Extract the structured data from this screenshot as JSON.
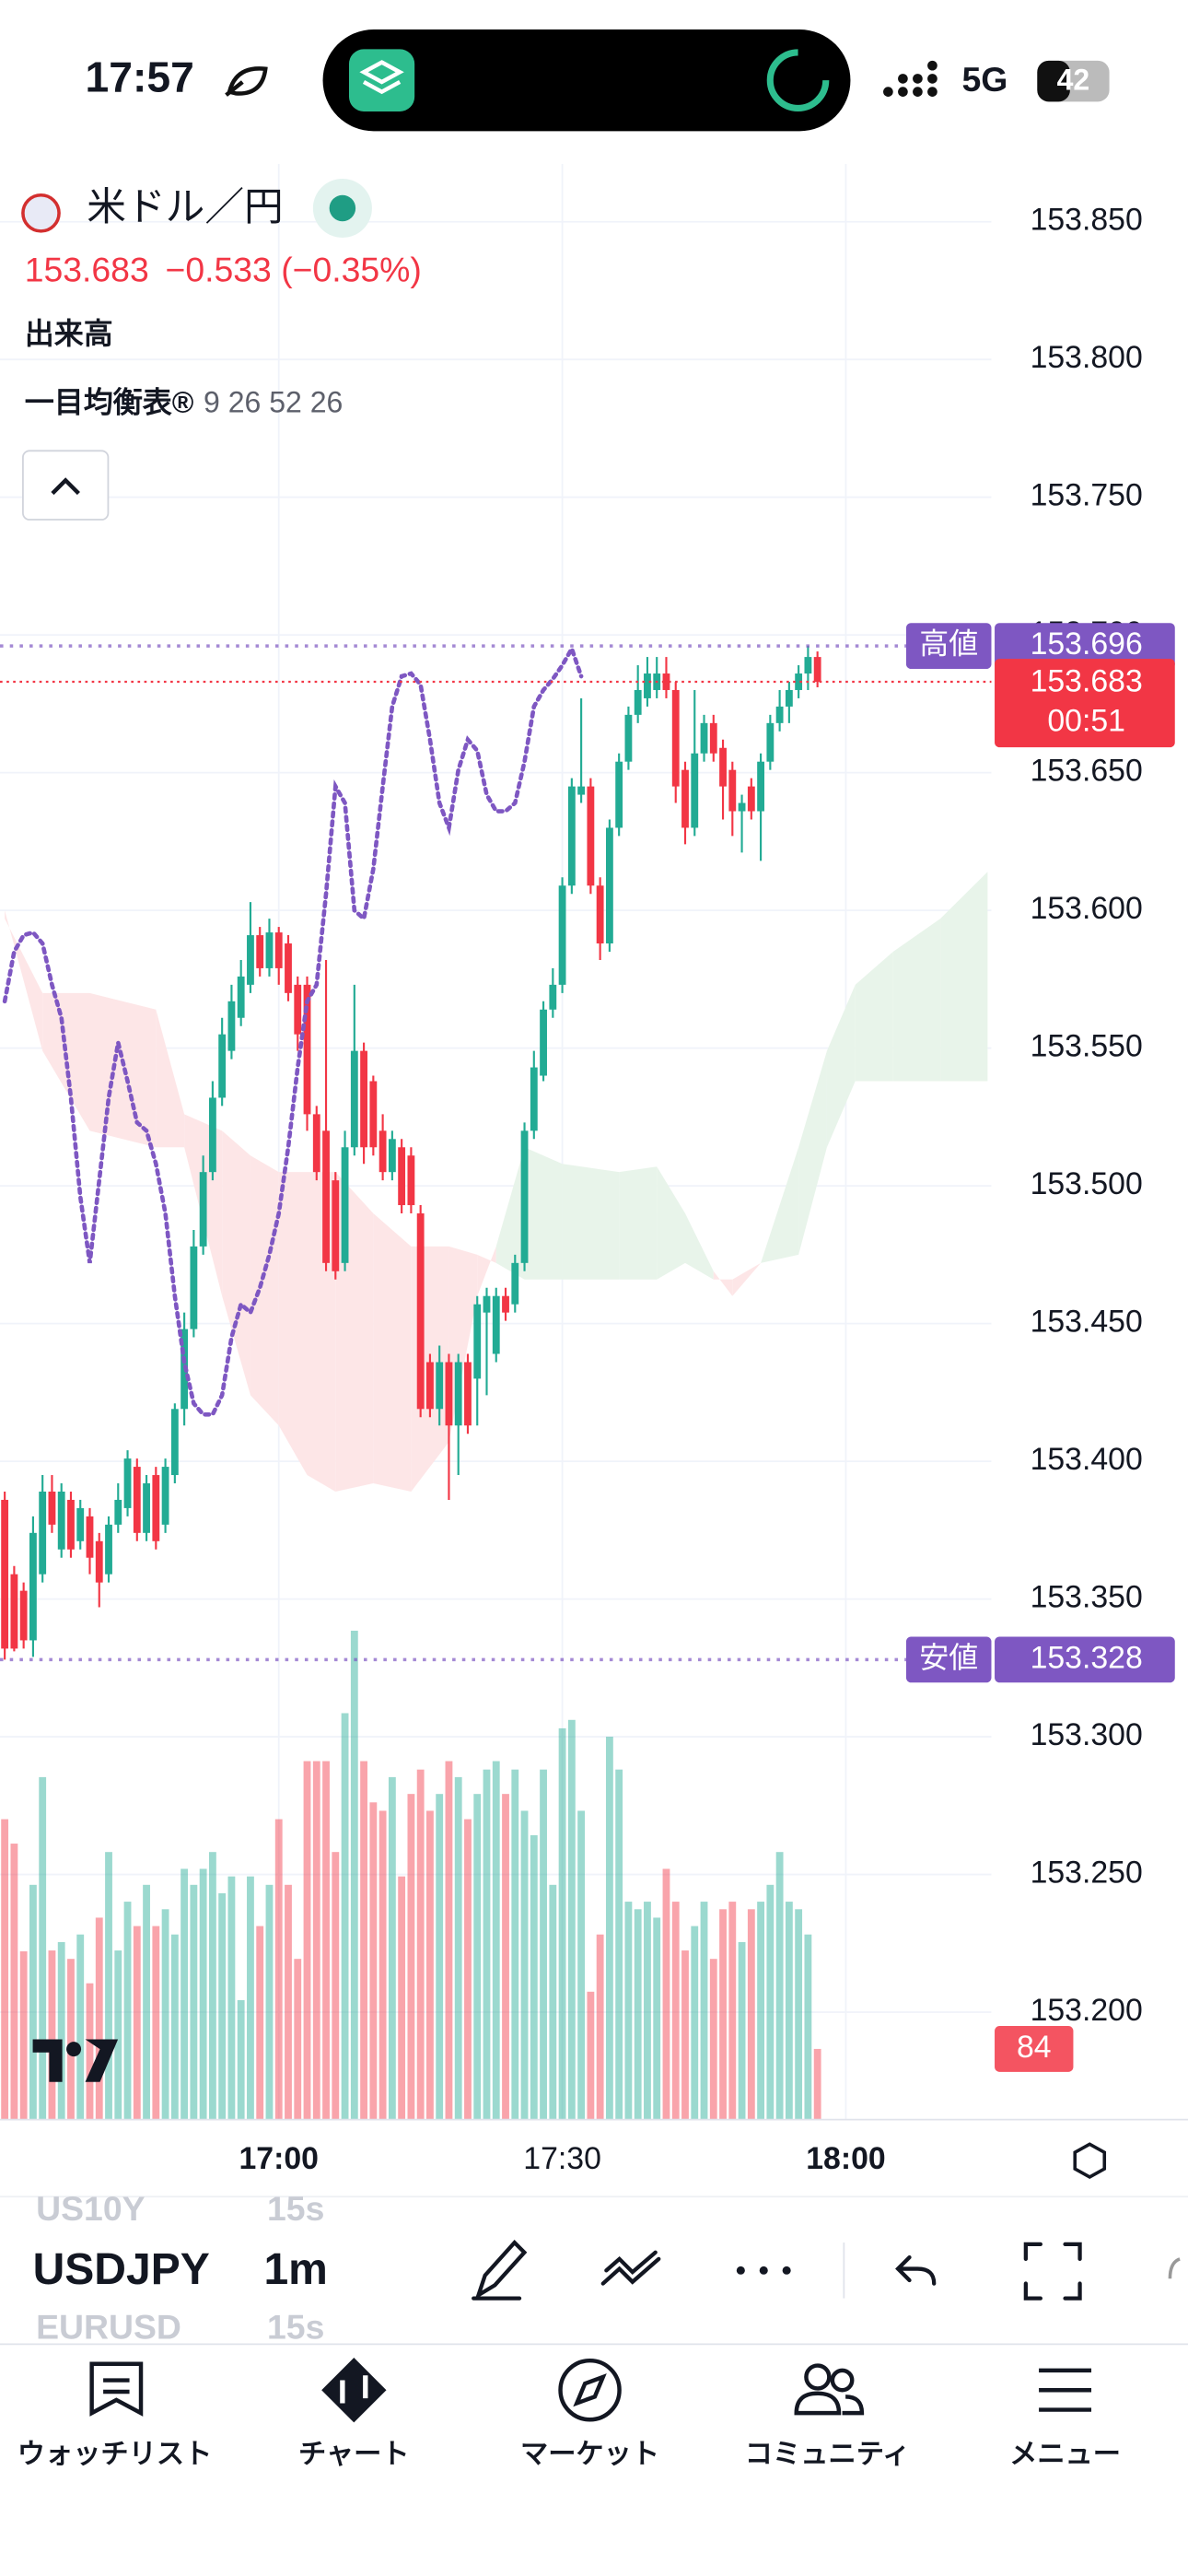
{
  "status_bar": {
    "time": "17:57",
    "network": "5G",
    "battery": "42"
  },
  "header": {
    "symbol": "米ドル／円",
    "price": "153.683",
    "change": "−0.533 (−0.35%)",
    "volume_label": "出来高",
    "indicator_label": "一目均衡表®",
    "indicator_params": "9 26 52 26"
  },
  "chart_data": {
    "type": "candlestick",
    "up_color": "#22ab94",
    "down_color": "#f23645",
    "x": [
      -29,
      -28,
      -27,
      -26,
      -25,
      -24,
      -23,
      -22,
      -21,
      -20,
      -19,
      -18,
      -17,
      -16,
      -15,
      -14,
      -13,
      -12,
      -11,
      -10,
      -9,
      -8,
      -7,
      -6,
      -5,
      -4,
      -3,
      -2,
      -1,
      0,
      1,
      2,
      3,
      4,
      5,
      6,
      7,
      8,
      9,
      10,
      11,
      12,
      13,
      14,
      15,
      16,
      17,
      18,
      19,
      20,
      21,
      22,
      23,
      24,
      25,
      26,
      27,
      28,
      29,
      30,
      31,
      32,
      33,
      34,
      35,
      36,
      37,
      38,
      39,
      40,
      41,
      42,
      43,
      44,
      45,
      46,
      47,
      48,
      49,
      50,
      51,
      52,
      53,
      54,
      55,
      56,
      57
    ],
    "open": [
      153.386,
      153.359,
      153.353,
      153.335,
      153.359,
      153.389,
      153.368,
      153.386,
      153.371,
      153.38,
      153.371,
      153.359,
      153.377,
      153.383,
      153.398,
      153.374,
      153.395,
      153.377,
      153.395,
      153.419,
      153.448,
      153.478,
      153.505,
      153.532,
      153.549,
      153.561,
      153.573,
      153.591,
      153.579,
      153.592,
      153.588,
      153.573,
      153.573,
      153.526,
      153.52,
      153.502,
      153.472,
      153.514,
      153.549,
      153.538,
      153.52,
      153.505,
      153.514,
      153.511,
      153.49,
      153.436,
      153.419,
      153.436,
      153.413,
      153.436,
      153.43,
      153.454,
      153.439,
      153.46,
      153.457,
      153.472,
      153.52,
      153.54,
      153.564,
      153.573,
      153.609,
      153.642,
      153.645,
      153.609,
      153.588,
      153.63,
      153.654,
      153.671,
      153.677,
      153.68,
      153.686,
      153.68,
      153.651,
      153.63,
      153.657,
      153.668,
      153.659,
      153.651,
      153.636,
      153.645,
      153.636,
      153.654,
      153.668,
      153.674,
      153.68,
      153.686,
      153.692
    ],
    "high": [
      153.389,
      153.362,
      153.356,
      153.38,
      153.395,
      153.395,
      153.392,
      153.389,
      153.386,
      153.383,
      153.374,
      153.38,
      153.392,
      153.404,
      153.401,
      153.395,
      153.398,
      153.401,
      153.421,
      153.454,
      153.484,
      153.511,
      153.538,
      153.561,
      153.573,
      153.582,
      153.603,
      153.594,
      153.597,
      153.594,
      153.591,
      153.576,
      153.576,
      153.529,
      153.582,
      153.505,
      153.52,
      153.573,
      153.552,
      153.54,
      153.526,
      153.52,
      153.517,
      153.514,
      153.493,
      153.439,
      153.442,
      153.439,
      153.439,
      153.439,
      153.46,
      153.463,
      153.463,
      153.463,
      153.475,
      153.523,
      153.549,
      153.567,
      153.579,
      153.612,
      153.648,
      153.677,
      153.648,
      153.612,
      153.633,
      153.657,
      153.674,
      153.689,
      153.692,
      153.692,
      153.692,
      153.683,
      153.654,
      153.68,
      153.671,
      153.671,
      153.662,
      153.654,
      153.642,
      153.648,
      153.657,
      153.671,
      153.68,
      153.683,
      153.689,
      153.696,
      153.694
    ],
    "low": [
      153.328,
      153.331,
      153.332,
      153.329,
      153.356,
      153.374,
      153.365,
      153.365,
      153.368,
      153.359,
      153.347,
      153.356,
      153.374,
      153.38,
      153.371,
      153.371,
      153.368,
      153.374,
      153.392,
      153.413,
      153.445,
      153.475,
      153.502,
      153.529,
      153.546,
      153.558,
      153.57,
      153.576,
      153.576,
      153.573,
      153.567,
      153.549,
      153.52,
      153.502,
      153.469,
      153.466,
      153.469,
      153.511,
      153.508,
      153.511,
      153.502,
      153.502,
      153.49,
      153.49,
      153.416,
      153.416,
      153.413,
      153.386,
      153.395,
      153.41,
      153.413,
      153.424,
      153.436,
      153.451,
      153.454,
      153.469,
      153.517,
      153.538,
      153.561,
      153.57,
      153.606,
      153.639,
      153.606,
      153.582,
      153.585,
      153.627,
      153.651,
      153.668,
      153.674,
      153.677,
      153.677,
      153.639,
      153.624,
      153.627,
      153.654,
      153.654,
      153.633,
      153.627,
      153.621,
      153.633,
      153.618,
      153.651,
      153.665,
      153.668,
      153.677,
      153.68,
      153.681
    ],
    "close": [
      153.332,
      153.332,
      153.335,
      153.374,
      153.389,
      153.377,
      153.389,
      153.368,
      153.383,
      153.365,
      153.356,
      153.377,
      153.386,
      153.401,
      153.374,
      153.392,
      153.371,
      153.398,
      153.419,
      153.448,
      153.478,
      153.505,
      153.532,
      153.555,
      153.567,
      153.576,
      153.591,
      153.579,
      153.592,
      153.579,
      153.57,
      153.555,
      153.526,
      153.505,
      153.472,
      153.469,
      153.514,
      153.549,
      153.514,
      153.514,
      153.505,
      153.517,
      153.493,
      153.493,
      153.419,
      153.419,
      153.436,
      153.413,
      153.436,
      153.413,
      153.457,
      153.46,
      153.46,
      153.454,
      153.472,
      153.52,
      153.543,
      153.564,
      153.573,
      153.609,
      153.645,
      153.645,
      153.609,
      153.588,
      153.63,
      153.654,
      153.671,
      153.68,
      153.686,
      153.686,
      153.68,
      153.645,
      153.63,
      153.657,
      153.668,
      153.657,
      153.645,
      153.636,
      153.639,
      153.636,
      153.654,
      153.668,
      153.674,
      153.68,
      153.686,
      153.692,
      153.683
    ],
    "volume": [
      357,
      328,
      200,
      279,
      407,
      201,
      211,
      191,
      220,
      162,
      240,
      318,
      201,
      259,
      230,
      279,
      230,
      250,
      220,
      298,
      279,
      298,
      318,
      269,
      289,
      142,
      289,
      230,
      279,
      357,
      279,
      191,
      426,
      426,
      426,
      318,
      483,
      581,
      426,
      377,
      367,
      407,
      289,
      387,
      416,
      367,
      387,
      426,
      407,
      357,
      387,
      416,
      426,
      387,
      416,
      367,
      338,
      416,
      279,
      465,
      475,
      367,
      152,
      220,
      455,
      416,
      259,
      250,
      259,
      240,
      298,
      259,
      201,
      230,
      259,
      191,
      250,
      259,
      211,
      250,
      259,
      279,
      318,
      259,
      250,
      220,
      84
    ],
    "volume_ylim": [
      0,
      600
    ],
    "ichimoku": {
      "cloud_up_color": "#e8f4ea",
      "cloud_down_color": "#fde6e7",
      "x": [
        -29,
        -25,
        -20,
        -13,
        -10,
        -6,
        -3,
        0,
        3,
        6,
        10,
        14,
        18,
        21,
        23,
        26,
        30,
        36,
        40,
        43,
        46,
        48,
        51,
        55,
        58,
        61,
        65,
        70,
        75
      ],
      "span_a": [
        153.6,
        153.549,
        153.52,
        153.514,
        153.514,
        153.46,
        153.424,
        153.413,
        153.395,
        153.389,
        153.392,
        153.389,
        153.407,
        153.46,
        153.478,
        153.514,
        153.508,
        153.505,
        153.507,
        153.49,
        153.469,
        153.46,
        153.472,
        153.514,
        153.549,
        153.573,
        153.585,
        153.597,
        153.614
      ],
      "span_b": [
        153.597,
        153.57,
        153.57,
        153.564,
        153.526,
        153.52,
        153.511,
        153.505,
        153.505,
        153.505,
        153.49,
        153.478,
        153.478,
        153.475,
        153.472,
        153.466,
        153.466,
        153.466,
        153.466,
        153.472,
        153.466,
        153.466,
        153.472,
        153.475,
        153.514,
        153.538,
        153.538,
        153.538,
        153.538
      ]
    },
    "lagging_span": {
      "color": "#7e57c2",
      "x": [
        -29,
        -28,
        -27,
        -26,
        -25,
        -24,
        -23,
        -22,
        -21,
        -20,
        -19,
        -18,
        -17,
        -16,
        -15,
        -14,
        -13,
        -12,
        -11,
        -10,
        -9,
        -8,
        -7,
        -6,
        -5,
        -4,
        -3,
        -2,
        -1,
        0,
        1,
        2,
        3,
        4,
        5,
        6,
        7,
        8,
        9,
        10,
        11,
        12,
        13,
        14,
        15,
        16,
        17,
        18,
        19,
        20,
        21,
        22,
        23,
        24,
        25,
        26,
        27,
        28,
        29,
        30,
        31,
        32
      ],
      "values": [
        153.567,
        153.585,
        153.591,
        153.592,
        153.588,
        153.573,
        153.561,
        153.532,
        153.496,
        153.472,
        153.502,
        153.532,
        153.552,
        153.538,
        153.523,
        153.52,
        153.508,
        153.49,
        153.46,
        153.436,
        153.421,
        153.417,
        153.417,
        153.424,
        153.445,
        153.457,
        153.454,
        153.463,
        153.475,
        153.49,
        153.514,
        153.543,
        153.567,
        153.573,
        153.606,
        153.645,
        153.639,
        153.6,
        153.597,
        153.615,
        153.645,
        153.674,
        153.685,
        153.686,
        153.682,
        153.662,
        153.639,
        153.63,
        153.651,
        153.662,
        153.658,
        153.642,
        153.636,
        153.636,
        153.639,
        153.654,
        153.674,
        153.68,
        153.684,
        153.689,
        153.695,
        153.685
      ]
    },
    "high_line": {
      "label": "高値",
      "value": 153.696,
      "color": "#7e57c2"
    },
    "low_line": {
      "label": "安値",
      "value": 153.328,
      "color": "#7e57c2"
    },
    "last_price": {
      "value": 153.683,
      "countdown": "00:51",
      "color": "#f23645"
    },
    "xlim": [
      -29.5,
      75.4
    ],
    "xticks": [
      {
        "value": 0,
        "label": "17:00"
      },
      {
        "value": 30,
        "label": "17:30"
      },
      {
        "value": 60,
        "label": "18:00"
      }
    ],
    "ylim": [
      153.161,
      153.871
    ],
    "yticks": [
      {
        "value": 153.2,
        "label": "153.200"
      },
      {
        "value": 153.25,
        "label": "153.250"
      },
      {
        "value": 153.3,
        "label": "153.300"
      },
      {
        "value": 153.35,
        "label": "153.350"
      },
      {
        "value": 153.4,
        "label": "153.400"
      },
      {
        "value": 153.45,
        "label": "153.450"
      },
      {
        "value": 153.5,
        "label": "153.500"
      },
      {
        "value": 153.55,
        "label": "153.550"
      },
      {
        "value": 153.6,
        "label": "153.600"
      },
      {
        "value": 153.65,
        "label": "153.650"
      },
      {
        "value": 153.7,
        "label": "153.700"
      },
      {
        "value": 153.75,
        "label": "153.750"
      },
      {
        "value": 153.8,
        "label": "153.800"
      },
      {
        "value": 153.85,
        "label": "153.850"
      }
    ],
    "grid": true
  },
  "toolbar": {
    "symbols": [
      {
        "symbol": "US10Y",
        "interval": "15s"
      },
      {
        "symbol": "USDJPY",
        "interval": "1m"
      },
      {
        "symbol": "EURUSD",
        "interval": "15s"
      }
    ]
  },
  "nav": [
    "ウォッチリスト",
    "チャート",
    "マーケット",
    "コミュニティ",
    "メニュー"
  ]
}
